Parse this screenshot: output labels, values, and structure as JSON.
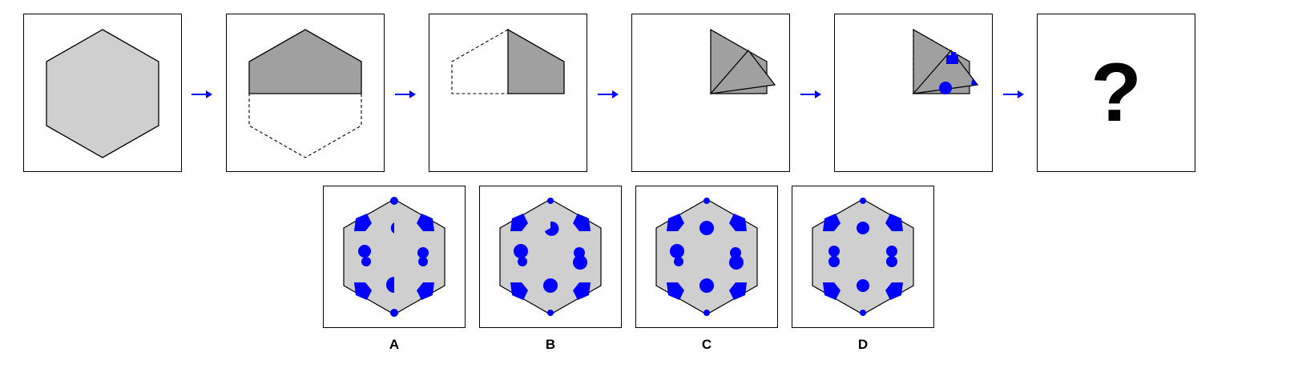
{
  "colors": {
    "paper": "#cfcfcf",
    "folded": "#a0a0a0",
    "punch": "#0000ff",
    "outline": "#000000",
    "arrow": "#0000ff"
  },
  "sequence": {
    "steps": [
      {
        "id": "unfolded-hexagon"
      },
      {
        "id": "fold-top-over-bottom"
      },
      {
        "id": "fold-left-over-right"
      },
      {
        "id": "fold-into-triangle"
      },
      {
        "id": "punch-holes"
      }
    ],
    "question_mark": "?"
  },
  "options": [
    {
      "label": "A"
    },
    {
      "label": "B"
    },
    {
      "label": "C"
    },
    {
      "label": "D"
    }
  ]
}
